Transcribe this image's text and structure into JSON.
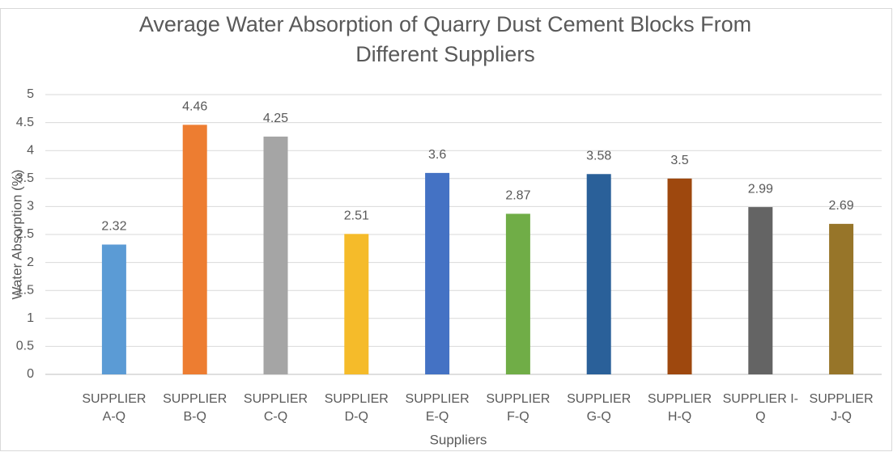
{
  "chart_data": {
    "type": "bar",
    "title": "Average Water Absorption of Quarry Dust Cement Blocks From Different Suppliers",
    "x_label": "Suppliers",
    "y_label": "Water Absorption (%)",
    "categories": [
      "SUPPLIER A-Q",
      "SUPPLIER B-Q",
      "SUPPLIER C-Q",
      "SUPPLIER D-Q",
      "SUPPLIER E-Q",
      "SUPPLIER F-Q",
      "SUPPLIER G-Q",
      "SUPPLIER H-Q",
      "SUPPLIER I-Q",
      "SUPPLIER J-Q"
    ],
    "values": [
      2.32,
      4.46,
      4.25,
      2.51,
      3.6,
      2.87,
      3.58,
      3.5,
      2.99,
      2.69
    ],
    "colors": [
      "#5b9bd5",
      "#ed7d31",
      "#a5a5a5",
      "#f5bb2a",
      "#4472c4",
      "#70ad47",
      "#2a6099",
      "#9e480e",
      "#646464",
      "#977529"
    ],
    "ylim": [
      0,
      5
    ],
    "yticks": [
      0,
      0.5,
      1,
      1.5,
      2,
      2.5,
      3,
      3.5,
      4,
      4.5,
      5
    ],
    "grid": true
  }
}
